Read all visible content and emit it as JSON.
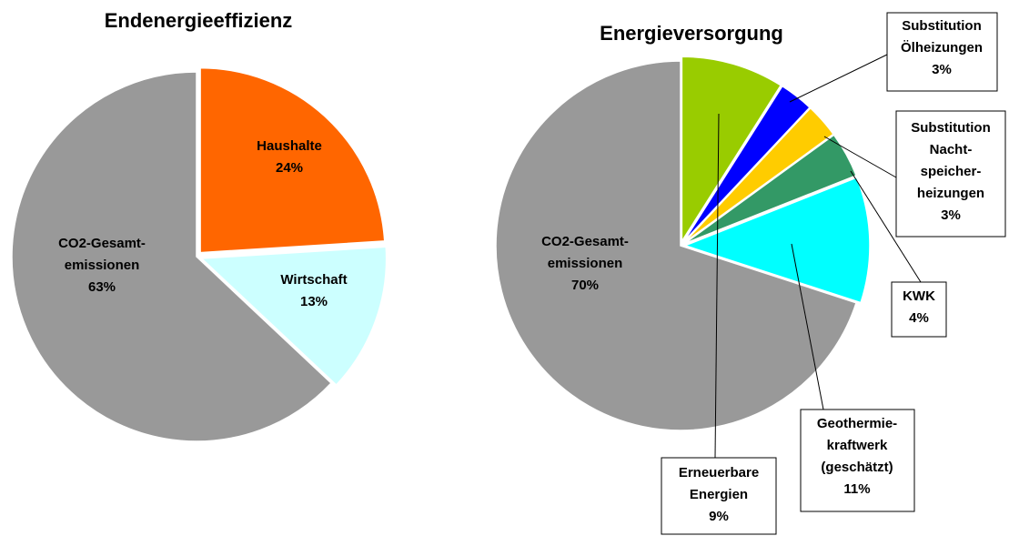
{
  "chart_data": [
    {
      "type": "pie",
      "title": "Endenergieeffizienz",
      "categories": [
        "Haushalte",
        "Wirtschaft",
        "CO2-Gesamt-\nemissionen"
      ],
      "values": [
        24,
        13,
        63
      ],
      "value_labels": [
        "24%",
        "13%",
        "63%"
      ],
      "colors": [
        "#ff6600",
        "#ccffff",
        "#999999"
      ]
    },
    {
      "type": "pie",
      "title": "Energieversorgung",
      "categories": [
        "Erneuerbare\nEnergien",
        "Substitution\nÖlheizungen",
        "Substitution\nNacht-\nspeicher-\nheizungen",
        "KWK",
        "Geothermie-\nkraftwerk\n(geschätzt)",
        "CO2-Gesamt-\nemissionen"
      ],
      "values": [
        9,
        3,
        3,
        4,
        11,
        70
      ],
      "value_labels": [
        "9%",
        "3%",
        "3%",
        "4%",
        "11%",
        "70%"
      ],
      "colors": [
        "#99cc00",
        "#0000ff",
        "#ffcc00",
        "#339966",
        "#00ffff",
        "#999999"
      ]
    }
  ]
}
